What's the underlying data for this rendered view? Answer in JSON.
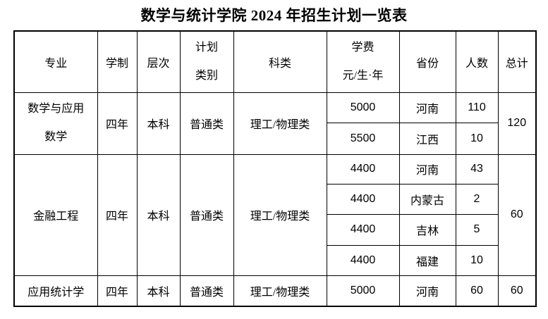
{
  "page": {
    "background": "#ffffff",
    "text_color": "#000000",
    "border_color": "#000000"
  },
  "title": "数学与统计学院 2024 年招生计划一览表",
  "table": {
    "header": {
      "major": "专业",
      "duration": "学制",
      "level": "层次",
      "plan_line1": "计划",
      "plan_line2": "类别",
      "subject": "科类",
      "tuition_line1": "学费",
      "tuition_line2": "元/生·年",
      "province": "省份",
      "count": "人数",
      "total": "总计"
    },
    "groups": [
      {
        "major_line1": "数学与应用",
        "major_line2": "数学",
        "duration": "四年",
        "level": "本科",
        "plan_category": "普通类",
        "subject_category": "理工/物理类",
        "rows": [
          {
            "tuition": "5000",
            "province": "河南",
            "count": "110"
          },
          {
            "tuition": "5500",
            "province": "江西",
            "count": "10"
          }
        ],
        "total": "120"
      },
      {
        "major_line1": "金融工程",
        "duration": "四年",
        "level": "本科",
        "plan_category": "普通类",
        "subject_category": "理工/物理类",
        "rows": [
          {
            "tuition": "4400",
            "province": "河南",
            "count": "43"
          },
          {
            "tuition": "4400",
            "province": "内蒙古",
            "count": "2"
          },
          {
            "tuition": "4400",
            "province": "吉林",
            "count": "5"
          },
          {
            "tuition": "4400",
            "province": "福建",
            "count": "10"
          }
        ],
        "total": "60"
      },
      {
        "major_line1": "应用统计学",
        "duration": "四年",
        "level": "本科",
        "plan_category": "普通类",
        "subject_category": "理工/物理类",
        "rows": [
          {
            "tuition": "5000",
            "province": "河南",
            "count": "60"
          }
        ],
        "total": "60"
      }
    ]
  }
}
